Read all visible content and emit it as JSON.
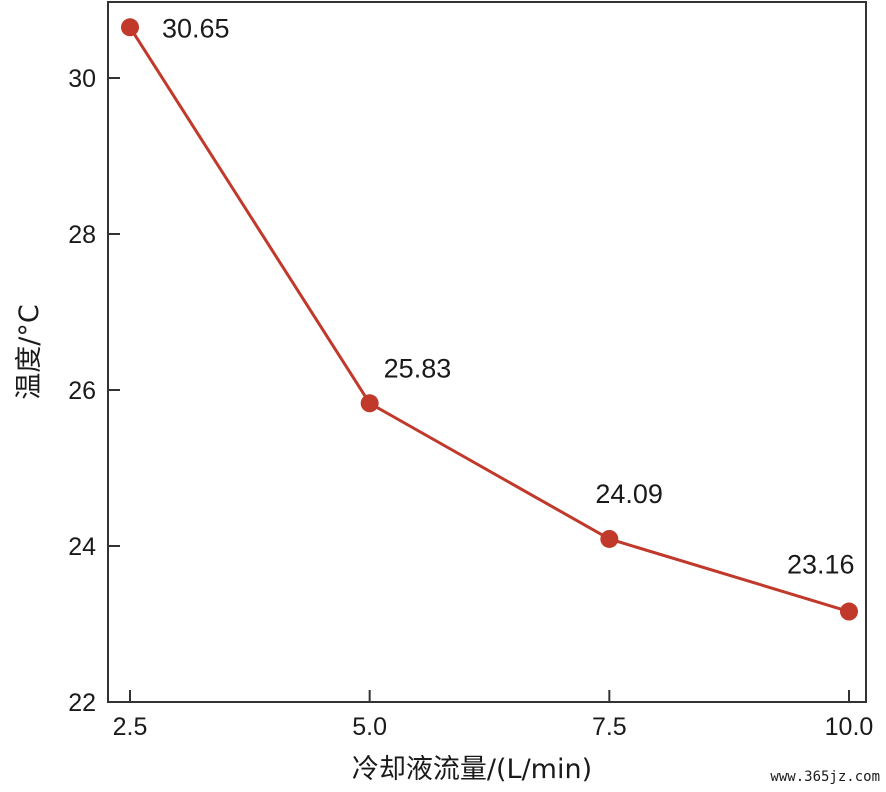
{
  "chart_data": {
    "type": "line",
    "title": "",
    "xlabel": "冷却液流量/(L/min)",
    "ylabel": "温度/°C",
    "x_ticks": [
      "2.5",
      "5.0",
      "7.5",
      "10.0"
    ],
    "y_ticks": [
      "22",
      "24",
      "26",
      "28",
      "30"
    ],
    "xlim": [
      2.5,
      10.0
    ],
    "ylim": [
      22,
      31
    ],
    "grid": false,
    "series": [
      {
        "color": "#c0392b",
        "x": [
          2.5,
          5.0,
          7.5,
          10.0
        ],
        "y": [
          30.65,
          25.83,
          24.09,
          23.16
        ],
        "labels": [
          "30.65",
          "25.83",
          "24.09",
          "23.16"
        ]
      }
    ]
  },
  "watermark": "www.365jz.com"
}
